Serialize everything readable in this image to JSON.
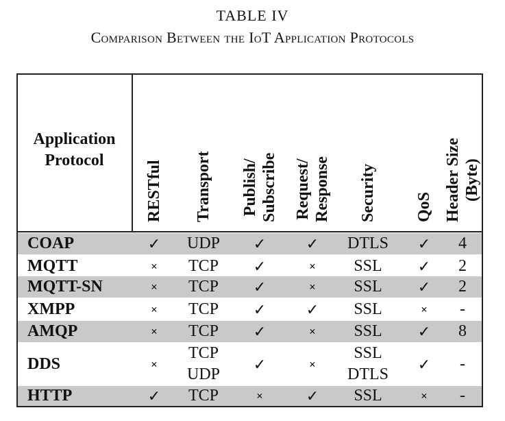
{
  "caption": {
    "title": "TABLE IV",
    "subtitle": "Comparison Between the IoT Application Protocols"
  },
  "header": {
    "application_protocol": [
      "Application",
      "Protocol"
    ],
    "columns": [
      {
        "key": "restful",
        "lines": [
          "RESTful"
        ]
      },
      {
        "key": "transport",
        "lines": [
          "Transport"
        ]
      },
      {
        "key": "pubsub",
        "lines": [
          "Publish/",
          "Subscribe"
        ]
      },
      {
        "key": "reqresp",
        "lines": [
          "Request/",
          "Response"
        ]
      },
      {
        "key": "security",
        "lines": [
          "Security"
        ]
      },
      {
        "key": "qos",
        "lines": [
          "QoS"
        ]
      },
      {
        "key": "header_size",
        "lines": [
          "Header Size",
          "(Byte)"
        ]
      }
    ]
  },
  "symbols": {
    "yes": "✓",
    "no": "×"
  },
  "rows": [
    {
      "protocol": "COAP",
      "restful": "yes",
      "transport": [
        "UDP"
      ],
      "pubsub": "yes",
      "reqresp": "yes",
      "security": [
        "DTLS"
      ],
      "qos": "yes",
      "header_size": "4",
      "shaded": true
    },
    {
      "protocol": "MQTT",
      "restful": "no",
      "transport": [
        "TCP"
      ],
      "pubsub": "yes",
      "reqresp": "no",
      "security": [
        "SSL"
      ],
      "qos": "yes",
      "header_size": "2",
      "shaded": false
    },
    {
      "protocol": "MQTT-SN",
      "restful": "no",
      "transport": [
        "TCP"
      ],
      "pubsub": "yes",
      "reqresp": "no",
      "security": [
        "SSL"
      ],
      "qos": "yes",
      "header_size": "2",
      "shaded": true
    },
    {
      "protocol": "XMPP",
      "restful": "no",
      "transport": [
        "TCP"
      ],
      "pubsub": "yes",
      "reqresp": "yes",
      "security": [
        "SSL"
      ],
      "qos": "no",
      "header_size": "-",
      "shaded": false
    },
    {
      "protocol": "AMQP",
      "restful": "no",
      "transport": [
        "TCP"
      ],
      "pubsub": "yes",
      "reqresp": "no",
      "security": [
        "SSL"
      ],
      "qos": "yes",
      "header_size": "8",
      "shaded": true
    },
    {
      "protocol": "DDS",
      "restful": "no",
      "transport": [
        "TCP",
        "UDP"
      ],
      "pubsub": "yes",
      "reqresp": "no",
      "security": [
        "SSL",
        "DTLS"
      ],
      "qos": "yes",
      "header_size": "-",
      "shaded": false
    },
    {
      "protocol": "HTTP",
      "restful": "yes",
      "transport": [
        "TCP"
      ],
      "pubsub": "no",
      "reqresp": "yes",
      "security": [
        "SSL"
      ],
      "qos": "no",
      "header_size": "-",
      "shaded": true
    }
  ]
}
